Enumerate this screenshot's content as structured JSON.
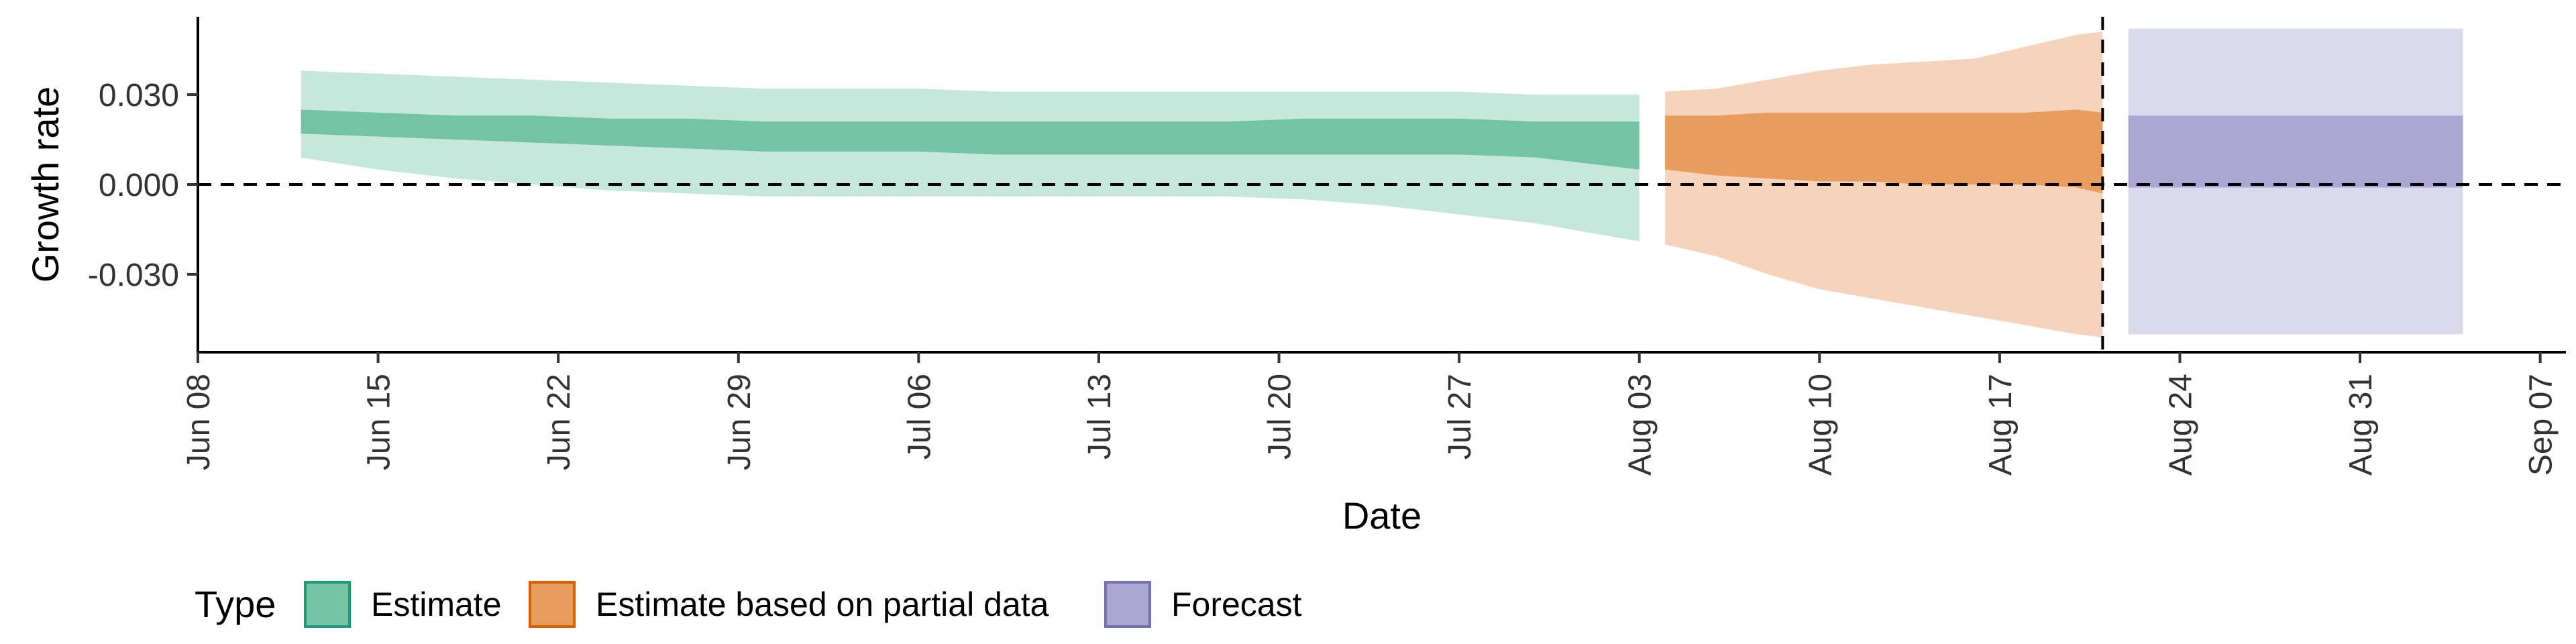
{
  "chart_data": {
    "type": "area",
    "title": "",
    "xlabel": "Date",
    "ylabel": "Growth rate",
    "x_axis": {
      "type": "date",
      "range": [
        "2021-06-08",
        "2021-09-08"
      ],
      "ticks": [
        "2021-06-08",
        "2021-06-15",
        "2021-06-22",
        "2021-06-29",
        "2021-07-06",
        "2021-07-13",
        "2021-07-20",
        "2021-07-27",
        "2021-08-03",
        "2021-08-10",
        "2021-08-17",
        "2021-08-24",
        "2021-08-31",
        "2021-09-07"
      ],
      "tick_labels": [
        "Jun 08",
        "Jun 15",
        "Jun 22",
        "Jun 29",
        "Jul 06",
        "Jul 13",
        "Jul 20",
        "Jul 27",
        "Aug 03",
        "Aug 10",
        "Aug 17",
        "Aug 24",
        "Aug 31",
        "Sep 07"
      ]
    },
    "y_axis": {
      "range": [
        -0.056,
        0.056
      ],
      "ticks": [
        -0.03,
        0,
        0.03
      ],
      "tick_labels": [
        "-0.030",
        "0.000",
        "0.030"
      ]
    },
    "reference_lines": {
      "horizontal_y": 0,
      "vertical_date": "2021-08-21"
    },
    "legend": {
      "title": "Type",
      "placement": "bottom",
      "entries": [
        {
          "label": "Estimate",
          "fill": "#74c3a6",
          "border": "#1b9e77"
        },
        {
          "label": "Estimate based on partial data",
          "fill": "#e89c5e",
          "border": "#d95f02"
        },
        {
          "label": "Forecast",
          "fill": "#aba7d2",
          "border": "#7570b3"
        }
      ]
    },
    "series": [
      {
        "name": "Estimate",
        "color": "#1b9e77",
        "outer_fill": "#c6e8dc",
        "inner_fill": "#74c3a6",
        "dates": [
          "2021-06-12",
          "2021-06-15",
          "2021-06-18",
          "2021-06-21",
          "2021-06-24",
          "2021-06-27",
          "2021-06-30",
          "2021-07-03",
          "2021-07-06",
          "2021-07-09",
          "2021-07-12",
          "2021-07-15",
          "2021-07-18",
          "2021-07-21",
          "2021-07-24",
          "2021-07-27",
          "2021-07-30",
          "2021-08-03"
        ],
        "outer_upper": [
          0.038,
          0.037,
          0.036,
          0.035,
          0.034,
          0.033,
          0.032,
          0.032,
          0.032,
          0.031,
          0.031,
          0.031,
          0.031,
          0.031,
          0.031,
          0.031,
          0.03,
          0.03
        ],
        "inner_upper": [
          0.025,
          0.024,
          0.023,
          0.023,
          0.022,
          0.022,
          0.021,
          0.021,
          0.021,
          0.021,
          0.021,
          0.021,
          0.021,
          0.022,
          0.022,
          0.022,
          0.021,
          0.021
        ],
        "inner_lower": [
          0.017,
          0.016,
          0.015,
          0.014,
          0.013,
          0.012,
          0.011,
          0.011,
          0.011,
          0.01,
          0.01,
          0.01,
          0.01,
          0.01,
          0.01,
          0.01,
          0.009,
          0.005
        ],
        "outer_lower": [
          0.009,
          0.005,
          0.002,
          0.0,
          -0.002,
          -0.003,
          -0.004,
          -0.004,
          -0.004,
          -0.004,
          -0.004,
          -0.004,
          -0.004,
          -0.005,
          -0.007,
          -0.01,
          -0.013,
          -0.019
        ]
      },
      {
        "name": "Estimate based on partial data",
        "color": "#d95f02",
        "outer_fill": "#f5d4bb",
        "inner_fill": "#e89c5e",
        "dates": [
          "2021-08-04",
          "2021-08-06",
          "2021-08-08",
          "2021-08-10",
          "2021-08-12",
          "2021-08-14",
          "2021-08-16",
          "2021-08-18",
          "2021-08-20",
          "2021-08-21"
        ],
        "outer_upper": [
          0.031,
          0.032,
          0.035,
          0.038,
          0.04,
          0.041,
          0.042,
          0.046,
          0.05,
          0.051
        ],
        "inner_upper": [
          0.023,
          0.023,
          0.024,
          0.024,
          0.024,
          0.024,
          0.024,
          0.024,
          0.025,
          0.024
        ],
        "inner_lower": [
          0.005,
          0.003,
          0.002,
          0.001,
          0.001,
          0.0,
          0.0,
          0.0,
          -0.001,
          -0.003
        ],
        "outer_lower": [
          -0.02,
          -0.024,
          -0.03,
          -0.035,
          -0.038,
          -0.041,
          -0.044,
          -0.047,
          -0.05,
          -0.051
        ]
      },
      {
        "name": "Forecast",
        "color": "#7570b3",
        "outer_fill": "#dbdaec",
        "inner_fill": "#aba7d2",
        "dates": [
          "2021-08-22",
          "2021-09-04"
        ],
        "outer_upper": [
          0.052,
          0.052
        ],
        "inner_upper": [
          0.023,
          0.023
        ],
        "inner_lower": [
          -0.001,
          -0.001
        ],
        "outer_lower": [
          -0.05,
          -0.05
        ]
      }
    ]
  }
}
